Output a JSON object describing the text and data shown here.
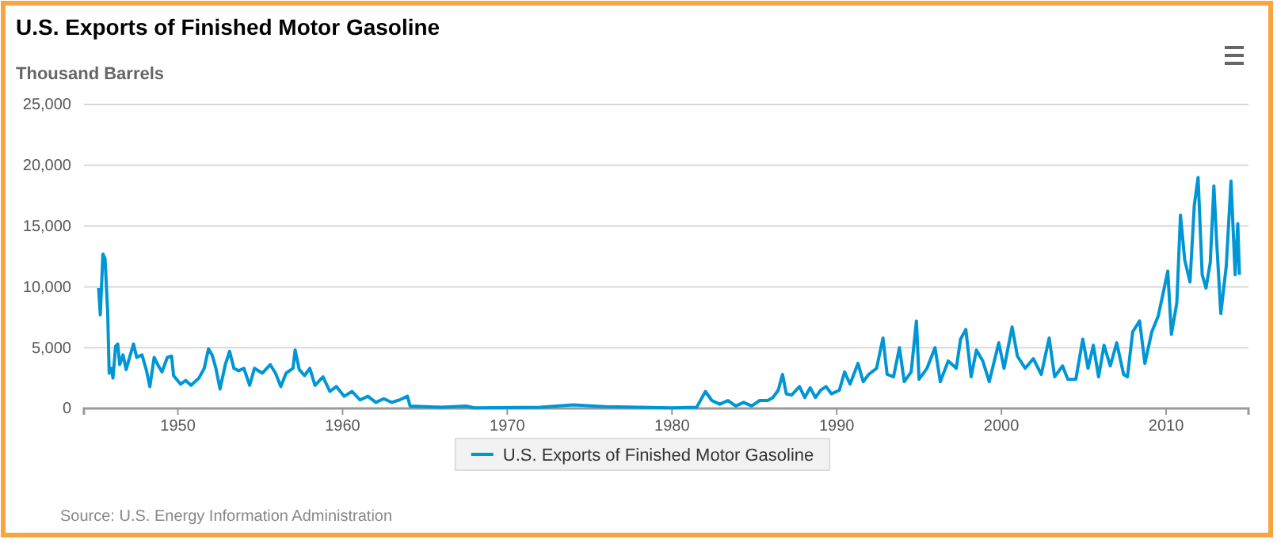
{
  "chart_data": {
    "type": "line",
    "title": "U.S. Exports of Finished Motor Gasoline",
    "ylabel": "Thousand Barrels",
    "annotations": [
      "Source: U.S. Energy Information Administration"
    ],
    "xlim": [
      1944.3,
      2015
    ],
    "xticks": [
      1950,
      1960,
      1970,
      1980,
      1990,
      2000,
      2010
    ],
    "ylim": [
      0,
      25000
    ],
    "yticks": [
      {
        "value": 0,
        "label": "0"
      },
      {
        "value": 5000,
        "label": "5,000"
      },
      {
        "value": 10000,
        "label": "10,000"
      },
      {
        "value": 15000,
        "label": "15,000"
      },
      {
        "value": 20000,
        "label": "20,000"
      },
      {
        "value": 25000,
        "label": "25,000"
      }
    ],
    "grid": "y",
    "legend": "bottom",
    "marker": "none",
    "line_style": "solid",
    "series": [
      {
        "name": "U.S. Exports of Finished Motor Gasoline",
        "color": "#0096d6",
        "x": [
          1945.19,
          1945.29,
          1945.45,
          1945.58,
          1945.74,
          1945.83,
          1945.96,
          1946.06,
          1946.22,
          1946.35,
          1946.47,
          1946.67,
          1946.86,
          1947.05,
          1947.31,
          1947.5,
          1947.82,
          1948.08,
          1948.3,
          1948.56,
          1948.78,
          1949.04,
          1949.36,
          1949.62,
          1949.74,
          1950.16,
          1950.48,
          1950.8,
          1951.28,
          1951.6,
          1951.86,
          1952.08,
          1952.31,
          1952.56,
          1952.88,
          1953.14,
          1953.4,
          1953.69,
          1954.01,
          1954.36,
          1954.65,
          1955.13,
          1955.61,
          1955.93,
          1956.25,
          1956.57,
          1956.99,
          1957.12,
          1957.37,
          1957.69,
          1958.01,
          1958.33,
          1958.81,
          1959.23,
          1959.62,
          1960.1,
          1960.58,
          1961.06,
          1961.54,
          1962.02,
          1962.5,
          1962.98,
          1963.46,
          1963.94,
          1964.1,
          1966,
          1967.5,
          1968,
          1972,
          1974,
          1976,
          1978,
          1980,
          1981.5,
          1982.03,
          1982.42,
          1982.9,
          1983.39,
          1983.87,
          1984.35,
          1984.84,
          1985.32,
          1985.81,
          1986.13,
          1986.45,
          1986.71,
          1986.94,
          1987.26,
          1987.74,
          1988.06,
          1988.39,
          1988.71,
          1989.03,
          1989.35,
          1989.68,
          1990.16,
          1990.48,
          1990.81,
          1991.29,
          1991.61,
          1991.94,
          1992.42,
          1992.81,
          1993.06,
          1993.45,
          1993.81,
          1994.1,
          1994.52,
          1994.84,
          1995,
          1995.48,
          1995.97,
          1996.29,
          1996.77,
          1997.26,
          1997.52,
          1997.84,
          1998.16,
          1998.48,
          1998.87,
          1999.26,
          1999.84,
          2000.16,
          2000.65,
          2000.97,
          2001.45,
          2001.94,
          2002.42,
          2002.9,
          2003.23,
          2003.71,
          2004.03,
          2004.52,
          2004.94,
          2005.26,
          2005.58,
          2005.9,
          2006.23,
          2006.61,
          2007,
          2007.42,
          2007.65,
          2007.97,
          2008.39,
          2008.71,
          2009.13,
          2009.52,
          2009.84,
          2010.1,
          2010.32,
          2010.65,
          2010.87,
          2011.13,
          2011.45,
          2011.71,
          2011.94,
          2012.19,
          2012.42,
          2012.68,
          2012.9,
          2013.06,
          2013.32,
          2013.65,
          2013.94,
          2014.19,
          2014.35,
          2014.45
        ],
        "values": [
          9900,
          7700,
          12700,
          12300,
          7900,
          2900,
          3300,
          2500,
          5100,
          5300,
          3600,
          4400,
          3200,
          4100,
          5300,
          4200,
          4400,
          3200,
          1800,
          4200,
          3600,
          3000,
          4200,
          4300,
          2700,
          2000,
          2300,
          1900,
          2500,
          3300,
          4900,
          4400,
          3300,
          1600,
          3600,
          4700,
          3300,
          3100,
          3300,
          1900,
          3300,
          2900,
          3600,
          2900,
          1800,
          2900,
          3300,
          4800,
          3200,
          2700,
          3300,
          1900,
          2600,
          1400,
          1800,
          1000,
          1400,
          700,
          1000,
          500,
          800,
          500,
          700,
          1000,
          200,
          100,
          200,
          50,
          100,
          300,
          150,
          100,
          50,
          100,
          1400,
          650,
          350,
          650,
          200,
          500,
          200,
          650,
          650,
          900,
          1500,
          2800,
          1200,
          1100,
          1800,
          900,
          1700,
          900,
          1500,
          1800,
          1200,
          1500,
          3000,
          2000,
          3700,
          2200,
          2800,
          3300,
          5800,
          2800,
          2600,
          5000,
          2200,
          3000,
          7200,
          2400,
          3300,
          5000,
          2200,
          3900,
          3300,
          5700,
          6500,
          2600,
          4800,
          3900,
          2200,
          5400,
          3300,
          6700,
          4300,
          3300,
          4100,
          2800,
          5800,
          2600,
          3500,
          2400,
          2400,
          5700,
          3300,
          5200,
          2600,
          5200,
          3500,
          5400,
          2800,
          2600,
          6300,
          7200,
          3700,
          6300,
          7600,
          9600,
          11300,
          6100,
          8700,
          15900,
          12200,
          10400,
          16700,
          19000,
          11000,
          9900,
          12000,
          18300,
          13900,
          7800,
          11700,
          18700,
          11000,
          15200,
          11000
        ]
      }
    ]
  }
}
